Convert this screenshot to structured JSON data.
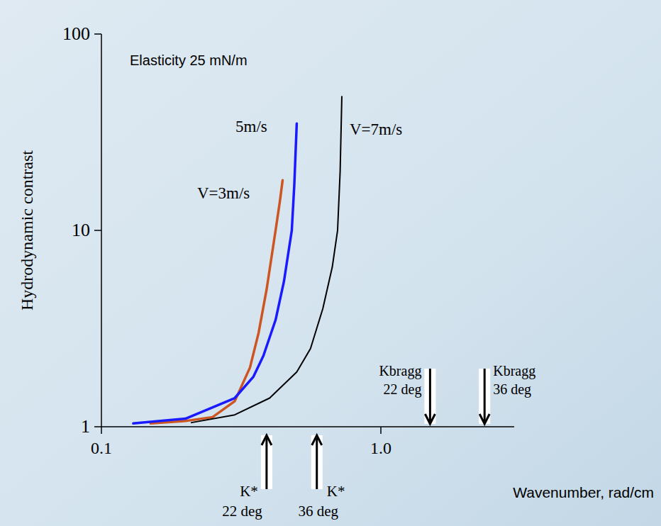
{
  "chart_data": {
    "type": "line",
    "log": true,
    "annotation": "Elasticity 25 mN/m",
    "x_label": "Wavenumber, rad/cm",
    "y_label": "Hydrodynamic contrast",
    "xlim": [
      0.1,
      3
    ],
    "ylim": [
      1,
      100
    ],
    "xticks": [
      0.1,
      {
        "value": 1,
        "label": "1.0"
      }
    ],
    "yticks": [
      1,
      10,
      100
    ],
    "series": [
      {
        "name": "V=3m/s",
        "color": "#cc5522",
        "x": [
          0.15,
          0.2,
          0.25,
          0.3,
          0.34,
          0.365,
          0.39,
          0.42,
          0.435,
          0.445
        ],
        "values": [
          1.04,
          1.07,
          1.12,
          1.35,
          2.0,
          3.0,
          5.0,
          10,
          14,
          18
        ]
      },
      {
        "name": "5m/s",
        "color": "#1a1aff",
        "x": [
          0.13,
          0.2,
          0.3,
          0.35,
          0.38,
          0.42,
          0.45,
          0.48,
          0.49,
          0.5
        ],
        "values": [
          1.04,
          1.1,
          1.4,
          1.8,
          2.3,
          3.5,
          5.5,
          10,
          17,
          35
        ]
      },
      {
        "name": "V=7m/s",
        "color": "#000000",
        "x": [
          0.21,
          0.3,
          0.4,
          0.5,
          0.56,
          0.62,
          0.67,
          0.7,
          0.715,
          0.725
        ],
        "values": [
          1.05,
          1.15,
          1.4,
          1.9,
          2.5,
          4,
          6.5,
          10,
          20,
          48
        ]
      }
    ],
    "k_star": [
      {
        "x": 0.39,
        "label": [
          "K*",
          "22 deg"
        ]
      },
      {
        "x": 0.59,
        "label": [
          "K*",
          "36 deg"
        ]
      }
    ],
    "k_bragg": [
      {
        "x": 1.5,
        "label": [
          "Kbragg",
          "22 deg"
        ]
      },
      {
        "x": 2.35,
        "label": [
          "Kbragg",
          "36 deg"
        ]
      }
    ]
  }
}
